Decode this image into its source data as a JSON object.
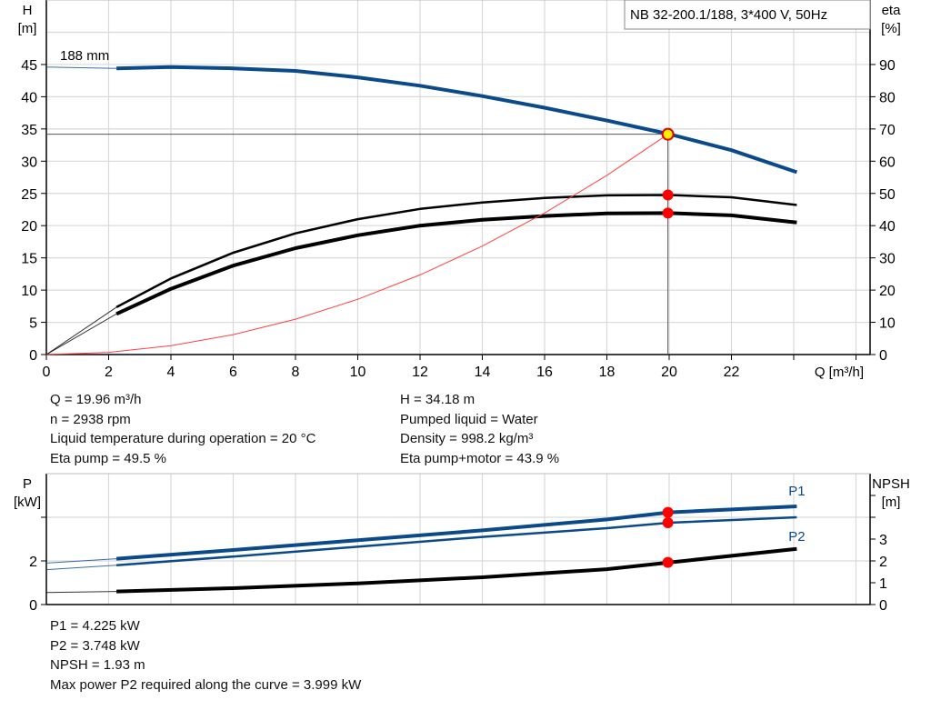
{
  "title": "NB 32-200.1/188, 3*400 V, 50Hz",
  "chart_data": [
    {
      "type": "line",
      "x_label": "Q [m³/h]",
      "y_label": [
        "H",
        "[m]"
      ],
      "y2_label": [
        "eta",
        "[%]"
      ],
      "xlim": [
        0,
        26
      ],
      "ylim": [
        0,
        50
      ],
      "y2lim": [
        0,
        100
      ],
      "x_ticks": [
        0,
        2,
        4,
        6,
        8,
        10,
        12,
        14,
        16,
        18,
        20,
        22
      ],
      "y_ticks": [
        0,
        5,
        10,
        15,
        20,
        25,
        30,
        35,
        40,
        45
      ],
      "y2_ticks": [
        0,
        10,
        20,
        30,
        40,
        50,
        60,
        70,
        80,
        90
      ],
      "grid": true,
      "curve_label": "188 mm",
      "series": [
        {
          "key": "head",
          "axis": "left",
          "color": "#0b4a8a",
          "x": [
            0,
            2.25,
            4,
            6,
            8,
            10,
            12,
            14,
            16,
            18,
            20,
            22,
            24.1
          ],
          "y": [
            44.6,
            44.4,
            44.6,
            44.4,
            44.0,
            43.0,
            41.7,
            40.1,
            38.3,
            36.3,
            34.2,
            31.7,
            28.3
          ]
        },
        {
          "key": "eta_pump",
          "axis": "right",
          "color": "#000000",
          "x": [
            0,
            2.25,
            4,
            6,
            8,
            10,
            12,
            14,
            16,
            18,
            20,
            22,
            24.1
          ],
          "y": [
            0,
            14.7,
            23.6,
            31.6,
            37.6,
            42,
            45.2,
            47.2,
            48.6,
            49.4,
            49.5,
            48.8,
            46.4
          ]
        },
        {
          "key": "eta_pump_motor",
          "axis": "right",
          "color": "#000000",
          "x": [
            0,
            2.25,
            4,
            6,
            8,
            10,
            12,
            14,
            16,
            18,
            20,
            22,
            24.1
          ],
          "y": [
            0,
            12.6,
            20.4,
            27.6,
            33,
            37,
            40,
            41.8,
            43,
            43.8,
            43.9,
            43.2,
            41
          ]
        },
        {
          "key": "system",
          "axis": "left",
          "color": "#ff4040",
          "x": [
            0,
            2,
            4,
            6,
            8,
            10,
            12,
            14,
            16,
            18,
            19.96
          ],
          "y": [
            0,
            0.34,
            1.37,
            3.09,
            5.49,
            8.58,
            12.35,
            16.82,
            21.96,
            27.8,
            34.18
          ]
        }
      ],
      "duty_point": {
        "q": 19.96,
        "h": 34.18,
        "eta_pump": 49.5,
        "eta_pump_motor": 43.9
      }
    },
    {
      "type": "line",
      "y_label": [
        "P",
        "[kW]"
      ],
      "y2_label": [
        "NPSH",
        "[m]"
      ],
      "xlim": [
        0,
        26
      ],
      "ylim": [
        0,
        6
      ],
      "y2lim": [
        0,
        6
      ],
      "y_ticks": [
        0,
        2,
        4
      ],
      "y_tick_labels": [
        "0",
        "2",
        ""
      ],
      "y2_ticks": [
        0,
        1,
        2,
        3,
        4,
        5
      ],
      "y2_tick_labels": [
        "0",
        "1",
        "2",
        "3",
        "",
        ""
      ],
      "grid": true,
      "series": [
        {
          "key": "P1",
          "name": "P1",
          "axis": "left",
          "color": "#0b4a8a",
          "x": [
            0,
            2.25,
            6,
            10,
            14,
            18,
            20,
            24.1
          ],
          "y": [
            1.9,
            2.1,
            2.5,
            2.95,
            3.4,
            3.9,
            4.225,
            4.5
          ]
        },
        {
          "key": "P2",
          "name": "P2",
          "axis": "left",
          "color": "#0b4a8a",
          "x": [
            0,
            2.25,
            6,
            10,
            14,
            18,
            20,
            24.1
          ],
          "y": [
            1.6,
            1.8,
            2.2,
            2.65,
            3.1,
            3.5,
            3.748,
            4.0
          ]
        },
        {
          "key": "NPSH",
          "axis": "right",
          "color": "#000000",
          "x": [
            0,
            2.25,
            6,
            10,
            14,
            18,
            20,
            24.1
          ],
          "y": [
            0.55,
            0.6,
            0.75,
            0.97,
            1.25,
            1.62,
            1.93,
            2.55
          ]
        }
      ],
      "duty_point": {
        "q": 19.96,
        "p1": 4.225,
        "p2": 3.748,
        "npsh": 1.93
      }
    }
  ],
  "info_top": {
    "left": [
      "Q = 19.96 m³/h",
      "n = 2938 rpm",
      "Liquid temperature during operation = 20 °C",
      "Eta pump = 49.5 %"
    ],
    "right": [
      "H = 34.18 m",
      "Pumped liquid = Water",
      "Density = 998.2 kg/m³",
      "Eta pump+motor = 43.9 %"
    ]
  },
  "info_bottom": [
    "P1 = 4.225 kW",
    "P2 = 3.748 kW",
    "NPSH = 1.93 m",
    "Max power P2 required along the curve = 3.999 kW"
  ]
}
